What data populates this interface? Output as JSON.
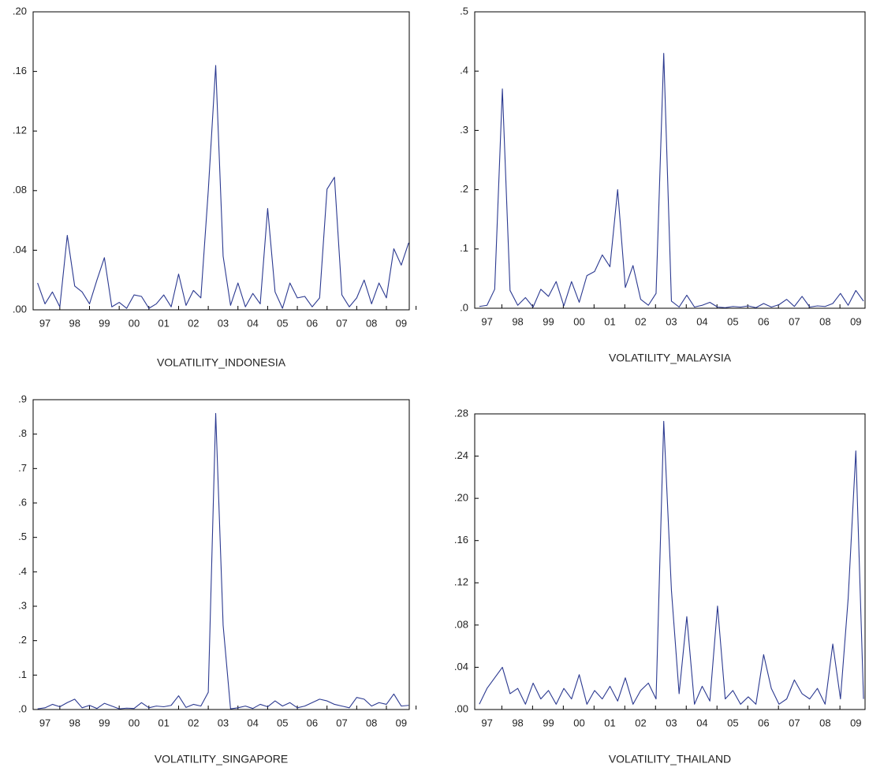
{
  "chart_data": [
    {
      "type": "line",
      "title": "VOLATILITY_INDONESIA",
      "color": "#2b3990",
      "x": [
        1996.75,
        1997,
        1997.25,
        1997.5,
        1997.75,
        1998,
        1998.25,
        1998.5,
        1998.75,
        1999,
        1999.25,
        1999.5,
        1999.75,
        2000,
        2000.25,
        2000.5,
        2000.75,
        2001,
        2001.25,
        2001.5,
        2001.75,
        2002,
        2002.25,
        2002.5,
        2002.75,
        2003,
        2003.25,
        2003.5,
        2003.75,
        2004,
        2004.25,
        2004.5,
        2004.75,
        2005,
        2005.25,
        2005.5,
        2005.75,
        2006,
        2006.25,
        2006.5,
        2006.75,
        2007,
        2007.25,
        2007.5,
        2007.75,
        2008,
        2008.25,
        2008.5,
        2008.75,
        2009,
        2009.25
      ],
      "values": [
        0.018,
        0.004,
        0.012,
        0.002,
        0.05,
        0.016,
        0.012,
        0.004,
        0.02,
        0.035,
        0.002,
        0.005,
        0.001,
        0.01,
        0.009,
        0.001,
        0.004,
        0.01,
        0.002,
        0.024,
        0.003,
        0.013,
        0.008,
        0.08,
        0.164,
        0.036,
        0.003,
        0.018,
        0.002,
        0.011,
        0.004,
        0.068,
        0.012,
        0.001,
        0.018,
        0.008,
        0.009,
        0.002,
        0.008,
        0.081,
        0.089,
        0.01,
        0.002,
        0.008,
        0.02,
        0.004,
        0.018,
        0.008,
        0.041,
        0.03,
        0.045
      ],
      "xlim": [
        1996.6,
        2009.27
      ],
      "xticks": [
        {
          "value": 1997,
          "label": "97"
        },
        {
          "value": 1998,
          "label": "98"
        },
        {
          "value": 1999,
          "label": "99"
        },
        {
          "value": 2000,
          "label": "00"
        },
        {
          "value": 2001,
          "label": "01"
        },
        {
          "value": 2002,
          "label": "02"
        },
        {
          "value": 2003,
          "label": "03"
        },
        {
          "value": 2004,
          "label": "04"
        },
        {
          "value": 2005,
          "label": "05"
        },
        {
          "value": 2006,
          "label": "06"
        },
        {
          "value": 2007,
          "label": "07"
        },
        {
          "value": 2008,
          "label": "08"
        },
        {
          "value": 2009,
          "label": "09"
        }
      ],
      "ylim": [
        0,
        0.2
      ],
      "yticks": [
        {
          "value": 0,
          "label": ".00"
        },
        {
          "value": 0.04,
          "label": ".04"
        },
        {
          "value": 0.08,
          "label": ".08"
        },
        {
          "value": 0.12,
          "label": ".12"
        },
        {
          "value": 0.16,
          "label": ".16"
        },
        {
          "value": 0.2,
          "label": ".20"
        }
      ]
    },
    {
      "type": "line",
      "title": "VOLATILITY_MALAYSIA",
      "color": "#2b3990",
      "x": [
        1996.75,
        1997,
        1997.25,
        1997.5,
        1997.75,
        1998,
        1998.25,
        1998.5,
        1998.75,
        1999,
        1999.25,
        1999.5,
        1999.75,
        2000,
        2000.25,
        2000.5,
        2000.75,
        2001,
        2001.25,
        2001.5,
        2001.75,
        2002,
        2002.25,
        2002.5,
        2002.75,
        2003,
        2003.25,
        2003.5,
        2003.75,
        2004,
        2004.25,
        2004.5,
        2004.75,
        2005,
        2005.25,
        2005.5,
        2005.75,
        2006,
        2006.25,
        2006.5,
        2006.75,
        2007,
        2007.25,
        2007.5,
        2007.75,
        2008,
        2008.25,
        2008.5,
        2008.75,
        2009,
        2009.25
      ],
      "values": [
        0.003,
        0.005,
        0.032,
        0.37,
        0.03,
        0.005,
        0.018,
        0.002,
        0.032,
        0.02,
        0.045,
        0.004,
        0.045,
        0.01,
        0.055,
        0.062,
        0.09,
        0.07,
        0.2,
        0.035,
        0.072,
        0.015,
        0.005,
        0.025,
        0.43,
        0.012,
        0.002,
        0.022,
        0.002,
        0.005,
        0.01,
        0.002,
        0.001,
        0.003,
        0.002,
        0.004,
        0.001,
        0.008,
        0.002,
        0.006,
        0.015,
        0.003,
        0.02,
        0.002,
        0.004,
        0.003,
        0.008,
        0.025,
        0.005,
        0.03,
        0.012
      ],
      "xlim": [
        1996.6,
        2009.3
      ],
      "xticks": [
        {
          "value": 1997,
          "label": "97"
        },
        {
          "value": 1998,
          "label": "98"
        },
        {
          "value": 1999,
          "label": "99"
        },
        {
          "value": 2000,
          "label": "00"
        },
        {
          "value": 2001,
          "label": "01"
        },
        {
          "value": 2002,
          "label": "02"
        },
        {
          "value": 2003,
          "label": "03"
        },
        {
          "value": 2004,
          "label": "04"
        },
        {
          "value": 2005,
          "label": "05"
        },
        {
          "value": 2006,
          "label": "06"
        },
        {
          "value": 2007,
          "label": "07"
        },
        {
          "value": 2008,
          "label": "08"
        },
        {
          "value": 2009,
          "label": "09"
        }
      ],
      "ylim": [
        0,
        0.5
      ],
      "yticks": [
        {
          "value": 0,
          "label": ".0"
        },
        {
          "value": 0.1,
          "label": ".1"
        },
        {
          "value": 0.2,
          "label": ".2"
        },
        {
          "value": 0.3,
          "label": ".3"
        },
        {
          "value": 0.4,
          "label": ".4"
        },
        {
          "value": 0.5,
          "label": ".5"
        }
      ]
    },
    {
      "type": "line",
      "title": "VOLATILITY_SINGAPORE",
      "color": "#2b3990",
      "x": [
        1996.75,
        1997,
        1997.25,
        1997.5,
        1997.75,
        1998,
        1998.25,
        1998.5,
        1998.75,
        1999,
        1999.25,
        1999.5,
        1999.75,
        2000,
        2000.25,
        2000.5,
        2000.75,
        2001,
        2001.25,
        2001.5,
        2001.75,
        2002,
        2002.25,
        2002.5,
        2002.75,
        2003,
        2003.25,
        2003.5,
        2003.75,
        2004,
        2004.25,
        2004.5,
        2004.75,
        2005,
        2005.25,
        2005.5,
        2005.75,
        2006,
        2006.25,
        2006.5,
        2006.75,
        2007,
        2007.25,
        2007.5,
        2007.75,
        2008,
        2008.25,
        2008.5,
        2008.75,
        2009,
        2009.25
      ],
      "values": [
        0.002,
        0.005,
        0.015,
        0.008,
        0.02,
        0.03,
        0.005,
        0.012,
        0.003,
        0.018,
        0.01,
        0.002,
        0.004,
        0.003,
        0.02,
        0.005,
        0.01,
        0.008,
        0.012,
        0.04,
        0.006,
        0.015,
        0.01,
        0.05,
        0.86,
        0.245,
        0.002,
        0.005,
        0.01,
        0.003,
        0.015,
        0.008,
        0.025,
        0.01,
        0.02,
        0.005,
        0.01,
        0.02,
        0.03,
        0.025,
        0.015,
        0.01,
        0.005,
        0.035,
        0.03,
        0.01,
        0.02,
        0.015,
        0.045,
        0.01,
        0.012
      ],
      "xlim": [
        1996.6,
        2009.27
      ],
      "xticks": [
        {
          "value": 1997,
          "label": "97"
        },
        {
          "value": 1998,
          "label": "98"
        },
        {
          "value": 1999,
          "label": "99"
        },
        {
          "value": 2000,
          "label": "00"
        },
        {
          "value": 2001,
          "label": "01"
        },
        {
          "value": 2002,
          "label": "02"
        },
        {
          "value": 2003,
          "label": "03"
        },
        {
          "value": 2004,
          "label": "04"
        },
        {
          "value": 2005,
          "label": "05"
        },
        {
          "value": 2006,
          "label": "06"
        },
        {
          "value": 2007,
          "label": "07"
        },
        {
          "value": 2008,
          "label": "08"
        },
        {
          "value": 2009,
          "label": "09"
        }
      ],
      "ylim": [
        0,
        0.9
      ],
      "yticks": [
        {
          "value": 0,
          "label": ".0"
        },
        {
          "value": 0.1,
          "label": ".1"
        },
        {
          "value": 0.2,
          "label": ".2"
        },
        {
          "value": 0.3,
          "label": ".3"
        },
        {
          "value": 0.4,
          "label": ".4"
        },
        {
          "value": 0.5,
          "label": ".5"
        },
        {
          "value": 0.6,
          "label": ".6"
        },
        {
          "value": 0.7,
          "label": ".7"
        },
        {
          "value": 0.8,
          "label": ".8"
        },
        {
          "value": 0.9,
          "label": ".9"
        }
      ]
    },
    {
      "type": "line",
      "title": "VOLATILITY_THAILAND",
      "color": "#2b3990",
      "x": [
        1996.75,
        1997,
        1997.25,
        1997.5,
        1997.75,
        1998,
        1998.25,
        1998.5,
        1998.75,
        1999,
        1999.25,
        1999.5,
        1999.75,
        2000,
        2000.25,
        2000.5,
        2000.75,
        2001,
        2001.25,
        2001.5,
        2001.75,
        2002,
        2002.25,
        2002.5,
        2002.75,
        2003,
        2003.25,
        2003.5,
        2003.75,
        2004,
        2004.25,
        2004.5,
        2004.75,
        2005,
        2005.25,
        2005.5,
        2005.75,
        2006,
        2006.25,
        2006.5,
        2006.75,
        2007,
        2007.25,
        2007.5,
        2007.75,
        2008,
        2008.25,
        2008.5,
        2008.75,
        2009,
        2009.25
      ],
      "values": [
        0.005,
        0.02,
        0.03,
        0.04,
        0.015,
        0.02,
        0.005,
        0.025,
        0.01,
        0.018,
        0.005,
        0.02,
        0.01,
        0.033,
        0.005,
        0.018,
        0.01,
        0.022,
        0.008,
        0.03,
        0.005,
        0.018,
        0.025,
        0.01,
        0.273,
        0.113,
        0.015,
        0.088,
        0.005,
        0.022,
        0.008,
        0.098,
        0.01,
        0.018,
        0.005,
        0.012,
        0.005,
        0.052,
        0.02,
        0.005,
        0.01,
        0.028,
        0.015,
        0.01,
        0.02,
        0.005,
        0.062,
        0.01,
        0.105,
        0.245,
        0.01
      ],
      "xlim": [
        1996.6,
        2009.3
      ],
      "xticks": [
        {
          "value": 1997,
          "label": "97"
        },
        {
          "value": 1998,
          "label": "98"
        },
        {
          "value": 1999,
          "label": "99"
        },
        {
          "value": 2000,
          "label": "00"
        },
        {
          "value": 2001,
          "label": "01"
        },
        {
          "value": 2002,
          "label": "02"
        },
        {
          "value": 2003,
          "label": "03"
        },
        {
          "value": 2004,
          "label": "04"
        },
        {
          "value": 2005,
          "label": "05"
        },
        {
          "value": 2006,
          "label": "06"
        },
        {
          "value": 2007,
          "label": "07"
        },
        {
          "value": 2008,
          "label": "08"
        },
        {
          "value": 2009,
          "label": "09"
        }
      ],
      "ylim": [
        0,
        0.28
      ],
      "yticks": [
        {
          "value": 0,
          "label": ".00"
        },
        {
          "value": 0.04,
          "label": ".04"
        },
        {
          "value": 0.08,
          "label": ".08"
        },
        {
          "value": 0.12,
          "label": ".12"
        },
        {
          "value": 0.16,
          "label": ".16"
        },
        {
          "value": 0.2,
          "label": ".20"
        },
        {
          "value": 0.24,
          "label": ".24"
        },
        {
          "value": 0.28,
          "label": ".28"
        }
      ]
    }
  ]
}
